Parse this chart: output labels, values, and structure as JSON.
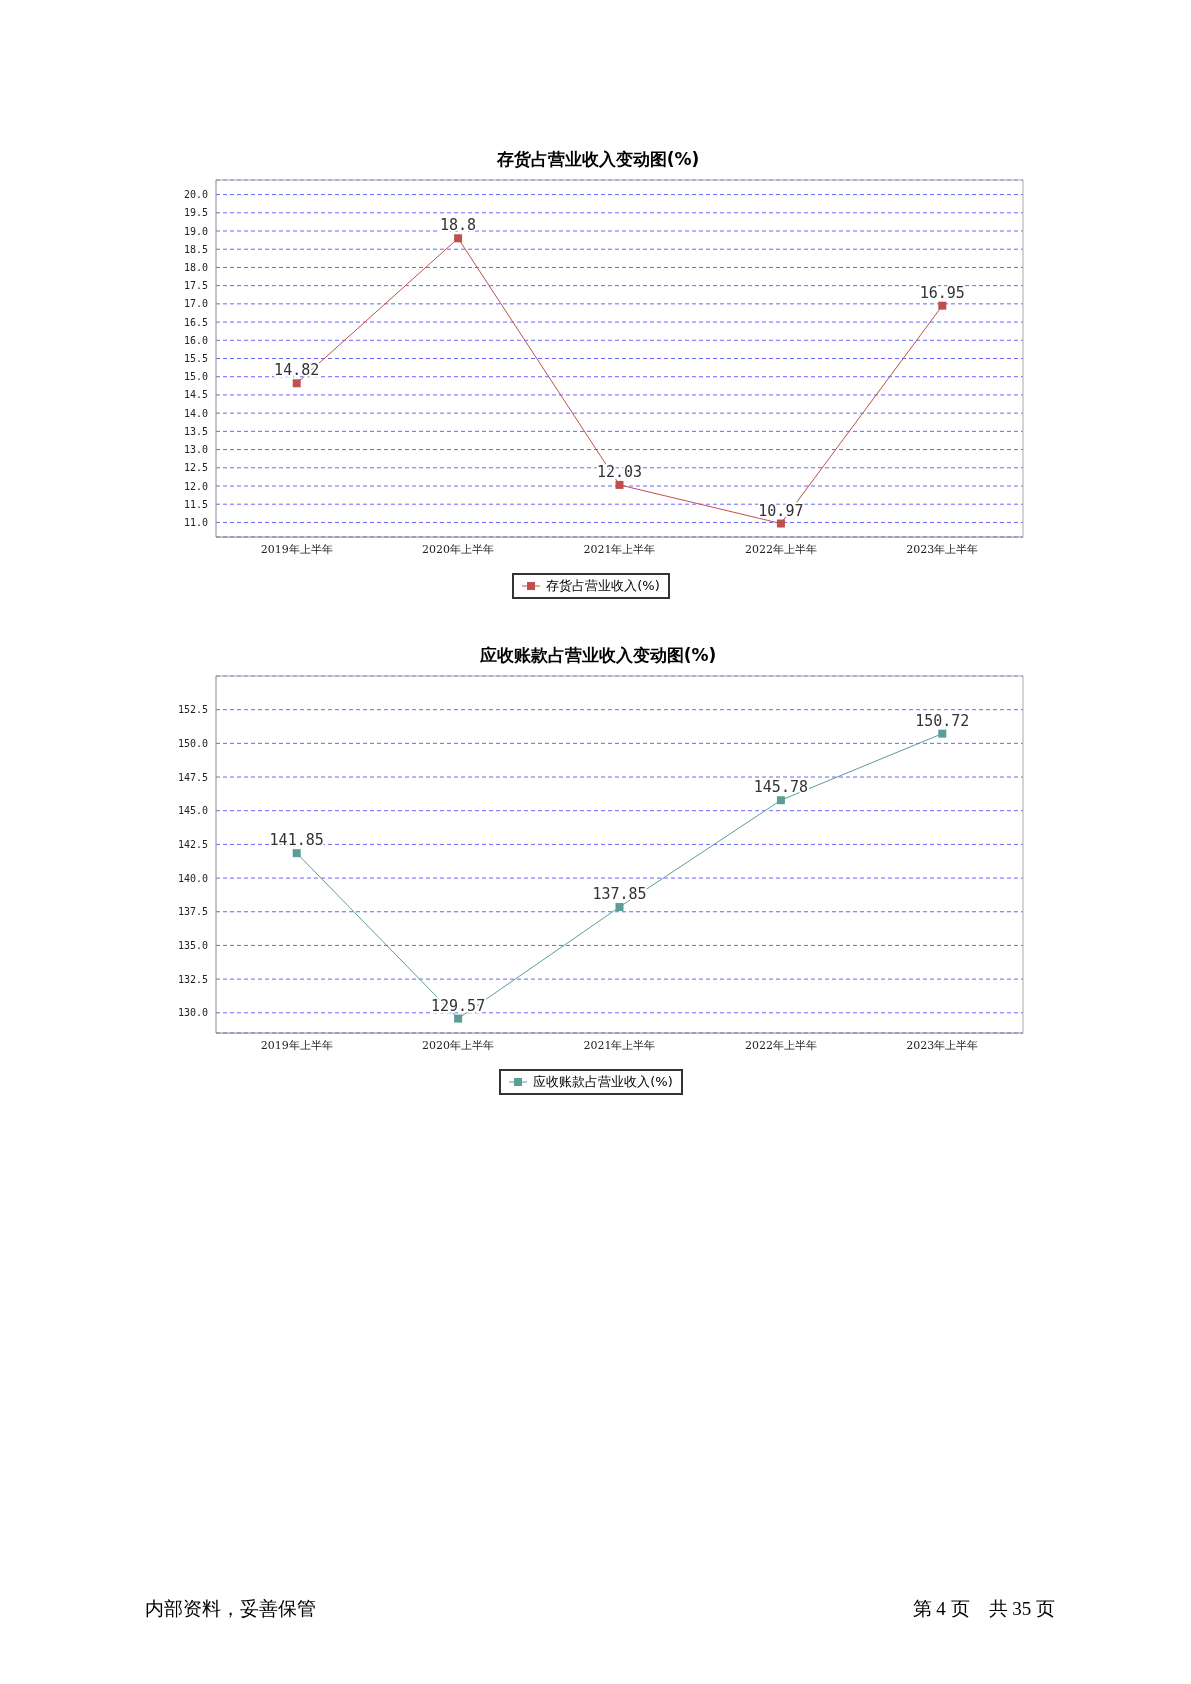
{
  "chart_data": [
    {
      "type": "line",
      "title": "存货占营业收入变动图(%)",
      "categories": [
        "2019年上半年",
        "2020年上半年",
        "2021年上半年",
        "2022年上半年",
        "2023年上半年"
      ],
      "series": [
        {
          "name": "存货占营业收入(%)",
          "color": "#c0504d",
          "values": [
            14.82,
            18.8,
            12.03,
            10.97,
            16.95
          ]
        }
      ],
      "ylim": [
        10.6,
        20.4
      ],
      "yticks": [
        {
          "value": 11,
          "label": "11.0"
        },
        11.5,
        {
          "value": 12,
          "label": "12.0"
        },
        12.5,
        {
          "value": 13,
          "label": "13.0"
        },
        13.5,
        {
          "value": 14,
          "label": "14.0"
        },
        14.5,
        {
          "value": 15,
          "label": "15.0"
        },
        15.5,
        {
          "value": 16,
          "label": "16.0"
        },
        16.5,
        {
          "value": 17,
          "label": "17.0"
        },
        17.5,
        {
          "value": 18,
          "label": "18.0"
        },
        18.5,
        {
          "value": 19,
          "label": "19.0"
        },
        19.5,
        {
          "value": 20,
          "label": "20.0"
        }
      ],
      "grid": "y",
      "legend": "bottom",
      "marker": "square",
      "line_style": "solid",
      "data_labels": true
    },
    {
      "type": "line",
      "title": "应收账款占营业收入变动图(%)",
      "categories": [
        "2019年上半年",
        "2020年上半年",
        "2021年上半年",
        "2022年上半年",
        "2023年上半年"
      ],
      "series": [
        {
          "name": "应收账款占营业收入(%)",
          "color": "#5b9e96",
          "values": [
            141.85,
            129.57,
            137.85,
            145.78,
            150.72
          ]
        }
      ],
      "ylim": [
        128.5,
        155
      ],
      "yticks": [
        {
          "value": 130,
          "label": "130.0"
        },
        132.5,
        {
          "value": 135,
          "label": "135.0"
        },
        137.5,
        {
          "value": 140,
          "label": "140.0"
        },
        142.5,
        {
          "value": 145,
          "label": "145.0"
        },
        147.5,
        {
          "value": 150,
          "label": "150.0"
        },
        152.5
      ],
      "grid": "y",
      "legend": "bottom",
      "marker": "square",
      "line_style": "solid",
      "data_labels": true,
      "annotations": [
        "内部资料，妥善保管",
        "第 4 页　共 35 页"
      ]
    }
  ]
}
